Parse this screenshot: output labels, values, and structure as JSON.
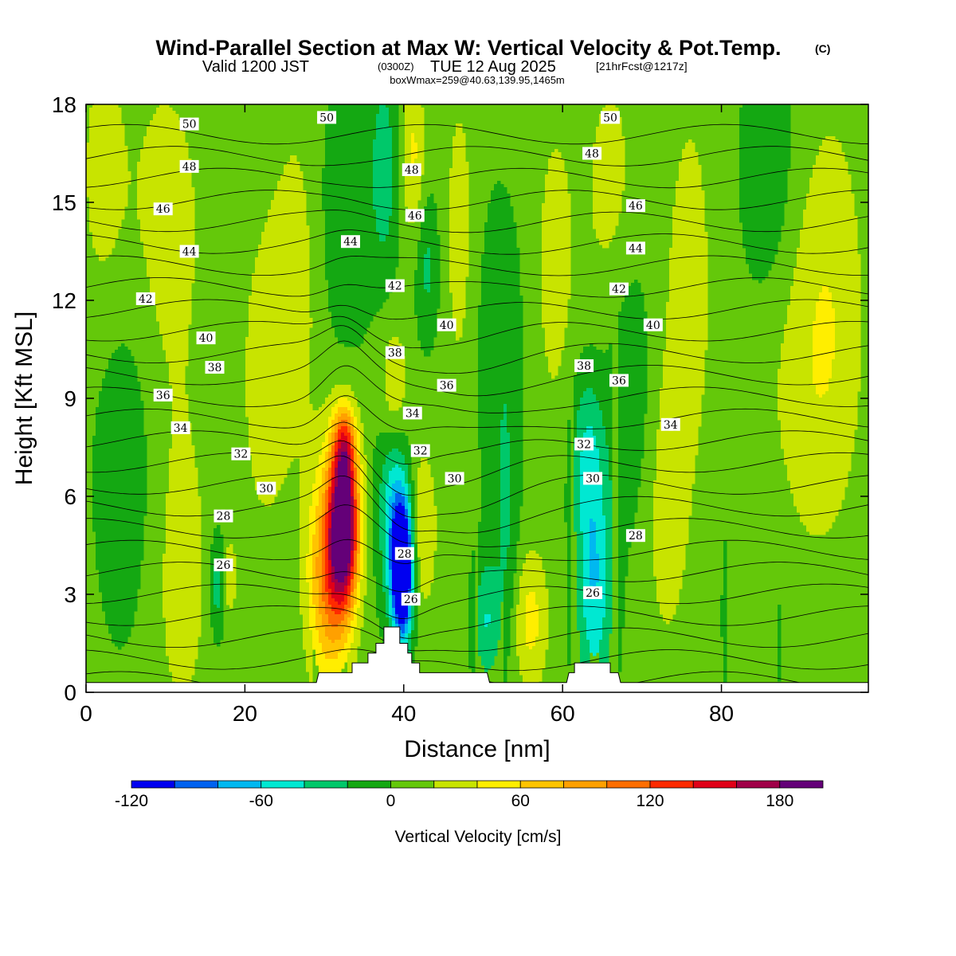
{
  "title": {
    "main": "Wind-Parallel Section at Max W: Vertical Velocity & Pot.Temp.",
    "copyright": "(C)",
    "valid_prefix": "Valid 1200 JST",
    "valid_z": "(0300Z)",
    "valid_date": "TUE 12 Aug 2025",
    "forecast": "[21hrFcst@1217z]",
    "box": "boxWmax=259@40.63,139.95,1465m"
  },
  "chart_data": {
    "type": "heatmap",
    "xlabel": "Distance [nm]",
    "ylabel": "Height [Kft MSL]",
    "xlim": [
      0,
      98.5
    ],
    "ylim": [
      0,
      18
    ],
    "x_ticks": [
      0,
      20,
      40,
      60,
      80
    ],
    "y_ticks": [
      0,
      3,
      6,
      9,
      12,
      15,
      18
    ],
    "colorbar": {
      "title": "Vertical Velocity [cm/s]",
      "levels": [
        -120,
        -100,
        -80,
        -60,
        -40,
        -20,
        0,
        20,
        40,
        60,
        80,
        100,
        120,
        140,
        160,
        180,
        200
      ],
      "tick_labels": [
        "-120",
        "-60",
        "0",
        "60",
        "120",
        "180"
      ],
      "tick_values": [
        -120,
        -60,
        0,
        60,
        120,
        180
      ],
      "colors": [
        "#0000f0",
        "#0062f0",
        "#00b8f0",
        "#00e8d2",
        "#00c86a",
        "#14a812",
        "#64c80a",
        "#c8e400",
        "#ffee00",
        "#ffc400",
        "#ffa000",
        "#ff6e00",
        "#ff2a00",
        "#e00018",
        "#a00048",
        "#640078"
      ]
    },
    "updraft_max_cm_s": 259,
    "updraft_location_nm": 32.5,
    "downdraft_location_nm": 39.5,
    "theta_contours_label": [
      "26",
      "28",
      "30",
      "32",
      "34",
      "36",
      "38",
      "40",
      "42",
      "44",
      "46",
      "48",
      "50"
    ],
    "terrain": [
      [
        0,
        0.3
      ],
      [
        29,
        0.3
      ],
      [
        29.3,
        0.6
      ],
      [
        33.5,
        0.6
      ],
      [
        33.5,
        0.9
      ],
      [
        35.5,
        0.9
      ],
      [
        35.5,
        1.2
      ],
      [
        36.5,
        1.2
      ],
      [
        36.5,
        1.5
      ],
      [
        37.5,
        1.5
      ],
      [
        37.5,
        2.0
      ],
      [
        39.5,
        2.0
      ],
      [
        39.5,
        1.5
      ],
      [
        40.5,
        1.5
      ],
      [
        40.5,
        1.2
      ],
      [
        41,
        1.2
      ],
      [
        41,
        0.9
      ],
      [
        42,
        0.9
      ],
      [
        42,
        0.6
      ],
      [
        50.5,
        0.6
      ],
      [
        50.8,
        0.3
      ],
      [
        60.5,
        0.3
      ],
      [
        60.8,
        0.6
      ],
      [
        61.5,
        0.6
      ],
      [
        61.5,
        0.9
      ],
      [
        66,
        0.9
      ],
      [
        66,
        0.6
      ],
      [
        67,
        0.6
      ],
      [
        67.3,
        0.3
      ],
      [
        98.5,
        0.3
      ]
    ],
    "contour_labels": [
      {
        "v": 50,
        "x": 13,
        "y": 17.4
      },
      {
        "v": 50,
        "x": 30.3,
        "y": 17.6
      },
      {
        "v": 50,
        "x": 66,
        "y": 17.6
      },
      {
        "v": 48,
        "x": 13,
        "y": 16.1
      },
      {
        "v": 48,
        "x": 41,
        "y": 16.0
      },
      {
        "v": 48,
        "x": 63.7,
        "y": 16.5
      },
      {
        "v": 46,
        "x": 9.7,
        "y": 14.8
      },
      {
        "v": 46,
        "x": 41.4,
        "y": 14.6
      },
      {
        "v": 46,
        "x": 69.2,
        "y": 14.9
      },
      {
        "v": 44,
        "x": 13,
        "y": 13.5
      },
      {
        "v": 44,
        "x": 33.3,
        "y": 13.8
      },
      {
        "v": 44,
        "x": 69.2,
        "y": 13.6
      },
      {
        "v": 42,
        "x": 7.5,
        "y": 12.05
      },
      {
        "v": 42,
        "x": 38.9,
        "y": 12.45
      },
      {
        "v": 42,
        "x": 67.1,
        "y": 12.35
      },
      {
        "v": 40,
        "x": 15.1,
        "y": 10.85
      },
      {
        "v": 40,
        "x": 45.4,
        "y": 11.25
      },
      {
        "v": 40,
        "x": 71.4,
        "y": 11.25
      },
      {
        "v": 38,
        "x": 16.2,
        "y": 9.95
      },
      {
        "v": 38,
        "x": 38.9,
        "y": 10.4
      },
      {
        "v": 38,
        "x": 62.7,
        "y": 10.0
      },
      {
        "v": 36,
        "x": 9.7,
        "y": 9.1
      },
      {
        "v": 36,
        "x": 45.4,
        "y": 9.4
      },
      {
        "v": 36,
        "x": 67.1,
        "y": 9.55
      },
      {
        "v": 34,
        "x": 11.9,
        "y": 8.1
      },
      {
        "v": 34,
        "x": 41.1,
        "y": 8.55
      },
      {
        "v": 34,
        "x": 73.6,
        "y": 8.2
      },
      {
        "v": 32,
        "x": 19.5,
        "y": 7.3
      },
      {
        "v": 32,
        "x": 42.1,
        "y": 7.4
      },
      {
        "v": 32,
        "x": 62.7,
        "y": 7.6
      },
      {
        "v": 30,
        "x": 22.7,
        "y": 6.25
      },
      {
        "v": 30,
        "x": 46.4,
        "y": 6.55
      },
      {
        "v": 30,
        "x": 63.8,
        "y": 6.55
      },
      {
        "v": 28,
        "x": 17.3,
        "y": 5.4
      },
      {
        "v": 28,
        "x": 40.1,
        "y": 4.25
      },
      {
        "v": 28,
        "x": 69.2,
        "y": 4.8
      },
      {
        "v": 26,
        "x": 17.3,
        "y": 3.9
      },
      {
        "v": 26,
        "x": 40.9,
        "y": 2.85
      },
      {
        "v": 26,
        "x": 63.8,
        "y": 3.05
      }
    ]
  }
}
